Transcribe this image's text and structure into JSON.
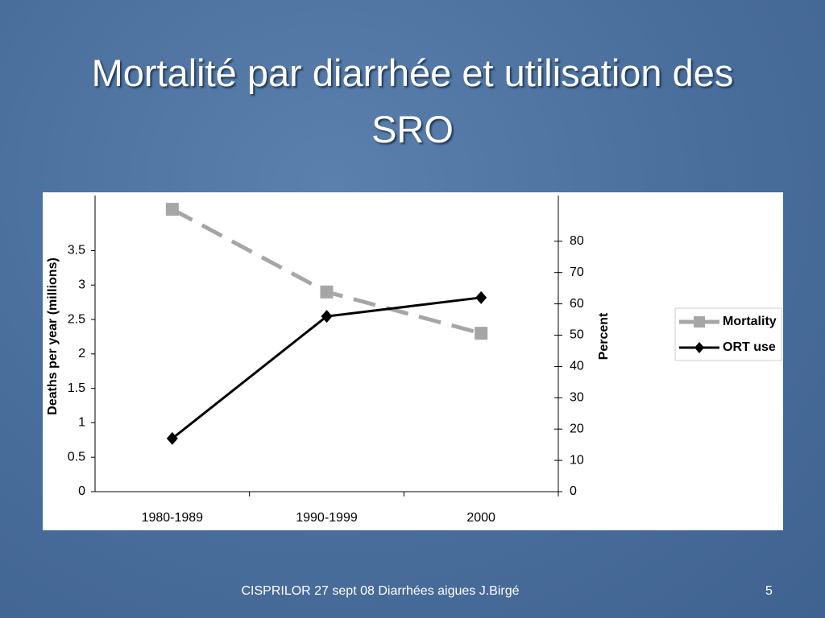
{
  "chart_data": {
    "type": "line",
    "title": "Mortalité par diarrhée et utilisation des SRO",
    "y_label": "Deaths per year (millions)",
    "y2_label": "Percent",
    "categories": [
      "1980-1989",
      "1990-1999",
      "2000"
    ],
    "series": [
      {
        "name": "Mortality",
        "color": "#a6a6a6",
        "values": [
          4.1,
          2.9,
          2.3
        ]
      },
      {
        "name": "ORT use",
        "color": "#000000",
        "axis": "y2",
        "values": [
          17,
          56,
          62
        ]
      }
    ],
    "ylim": [
      0,
      4.3
    ],
    "yticks": [
      0,
      0.5,
      1,
      1.5,
      2,
      2.5,
      3,
      3.5
    ],
    "y2lim": [
      0,
      94.6
    ],
    "y2ticks": [
      0,
      10,
      20,
      30,
      40,
      50,
      60,
      70,
      80
    ],
    "legend": "right"
  },
  "footer": {
    "text": "CISPRILOR 27 sept 08 Diarrhées aigues J.Birgé",
    "page": "5"
  }
}
